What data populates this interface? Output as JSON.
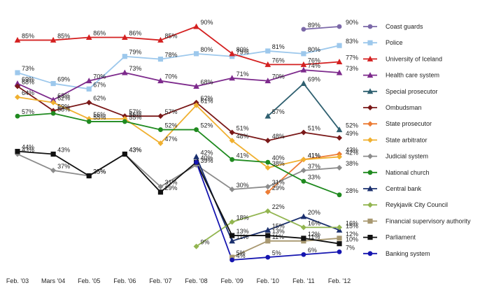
{
  "chart_data": {
    "type": "line",
    "categories": [
      "Feb. '03",
      "Mars '04",
      "Feb. '05",
      "Feb. '06",
      "Feb. '07",
      "Feb. '08",
      "Feb. '09",
      "Feb. '10",
      "Feb. '11",
      "Feb. '12"
    ],
    "ylim": [
      0,
      95
    ],
    "grid": false,
    "legend_position": "right",
    "series": [
      {
        "name": "Coast guards",
        "color": "#7b68a8",
        "marker": "circle",
        "values": [
          null,
          null,
          null,
          null,
          null,
          null,
          null,
          null,
          89,
          90
        ],
        "labels": [
          "",
          "",
          "",
          "",
          "",
          "",
          "",
          "",
          "89%",
          "90%"
        ]
      },
      {
        "name": "Police",
        "color": "#9dc8ec",
        "marker": "square",
        "values": [
          73,
          69,
          67,
          79,
          78,
          80,
          79,
          81,
          80,
          83
        ],
        "labels": [
          "73%",
          "69%",
          "67%",
          "79%",
          "78%",
          "80%",
          "79%",
          "81%",
          "80%",
          "83%"
        ]
      },
      {
        "name": "University of Iceland",
        "color": "#d42020",
        "marker": "triangle",
        "values": [
          85,
          85,
          86,
          86,
          85,
          90,
          80,
          76,
          76,
          77
        ],
        "labels": [
          "85%",
          "85%",
          "86%",
          "86%",
          "85%",
          "90%",
          "80%",
          "76%",
          "76%",
          "77%"
        ]
      },
      {
        "name": "Health care system",
        "color": "#7d2a8c",
        "marker": "triangle",
        "values": [
          69,
          63,
          70,
          73,
          70,
          68,
          71,
          70,
          74,
          73
        ],
        "labels": [
          "69%",
          "63%",
          "70%",
          "73%",
          "70%",
          "68%",
          "71%",
          "70%",
          "74%",
          "73%"
        ]
      },
      {
        "name": "Special prosecutor",
        "color": "#2f6070",
        "marker": "triangle",
        "values": [
          null,
          null,
          null,
          null,
          null,
          null,
          null,
          57,
          69,
          52
        ],
        "labels": [
          "",
          "",
          "",
          "",
          "",
          "",
          "",
          "57%",
          "69%",
          "52%"
        ]
      },
      {
        "name": "Ombudsman",
        "color": "#7a1818",
        "marker": "diamond",
        "values": [
          68,
          59,
          62,
          57,
          57,
          62,
          51,
          48,
          51,
          49
        ],
        "labels": [
          "68%",
          "59%",
          "62%",
          "57%",
          "57%",
          "62%",
          "51%",
          "48%",
          "51%",
          "49%"
        ]
      },
      {
        "name": "State prosecutor",
        "color": "#ec7c35",
        "marker": "diamond",
        "values": [
          null,
          null,
          null,
          null,
          null,
          null,
          null,
          29,
          41,
          43
        ],
        "labels": [
          "",
          "",
          "",
          "",
          "",
          "",
          "",
          "29%",
          "41%",
          "43%"
        ]
      },
      {
        "name": "State arbitrator",
        "color": "#f0b030",
        "marker": "diamond",
        "values": [
          64,
          62,
          56,
          56,
          47,
          61,
          48,
          38,
          41,
          42
        ],
        "labels": [
          "64%",
          "62%",
          "56%",
          "56%",
          "47%",
          "61%",
          "48%",
          "38%",
          "41%",
          "42%"
        ]
      },
      {
        "name": "Judicial system",
        "color": "#8c8c8c",
        "marker": "diamond",
        "values": [
          43,
          37,
          35,
          43,
          31,
          39,
          30,
          31,
          37,
          38
        ],
        "labels": [
          "43%",
          "37%",
          "35%",
          "43%",
          "31%",
          "39%",
          "30%",
          "31%",
          "37%",
          "38%"
        ]
      },
      {
        "name": "National church",
        "color": "#1f8a1f",
        "marker": "circle",
        "values": [
          57,
          58,
          55,
          55,
          52,
          52,
          41,
          40,
          33,
          28
        ],
        "labels": [
          "57%",
          "58%",
          "55%",
          "55%",
          "52%",
          "52%",
          "41%",
          "40%",
          "33%",
          "28%"
        ]
      },
      {
        "name": "Central bank",
        "color": "#1a2f6e",
        "marker": "triangle",
        "values": [
          null,
          null,
          null,
          null,
          null,
          42,
          11,
          15,
          20,
          15
        ],
        "labels": [
          "",
          "",
          "",
          "",
          "",
          "42%",
          "11%",
          "15%",
          "20%",
          "15%"
        ]
      },
      {
        "name": "Reykjavik City Council",
        "color": "#92b550",
        "marker": "diamond",
        "values": [
          null,
          null,
          null,
          null,
          null,
          9,
          18,
          22,
          16,
          16
        ],
        "labels": [
          "",
          "",
          "",
          "",
          "",
          "9%",
          "18%",
          "22%",
          "16%",
          "16%"
        ]
      },
      {
        "name": "Financial supervisory authority",
        "color": "#a89870",
        "marker": "square",
        "values": [
          null,
          null,
          null,
          null,
          null,
          null,
          5,
          11,
          11,
          12
        ],
        "labels": [
          "",
          "",
          "",
          "",
          "",
          "",
          "5%",
          "11%",
          "11%",
          "12%"
        ]
      },
      {
        "name": "Parliament",
        "color": "#111111",
        "marker": "square",
        "values": [
          44,
          43,
          35,
          43,
          29,
          40,
          13,
          13,
          12,
          10
        ],
        "labels": [
          "44%",
          "43%",
          "35%",
          "43%",
          "29%",
          "40%",
          "13%",
          "13%",
          "12%",
          "10%"
        ]
      },
      {
        "name": "Banking system",
        "color": "#1515b0",
        "marker": "circle",
        "values": [
          null,
          null,
          null,
          null,
          null,
          40,
          4,
          5,
          6,
          7
        ],
        "labels": [
          "",
          "",
          "",
          "",
          "",
          "",
          "4%",
          "5%",
          "6%",
          "7%"
        ]
      }
    ]
  }
}
